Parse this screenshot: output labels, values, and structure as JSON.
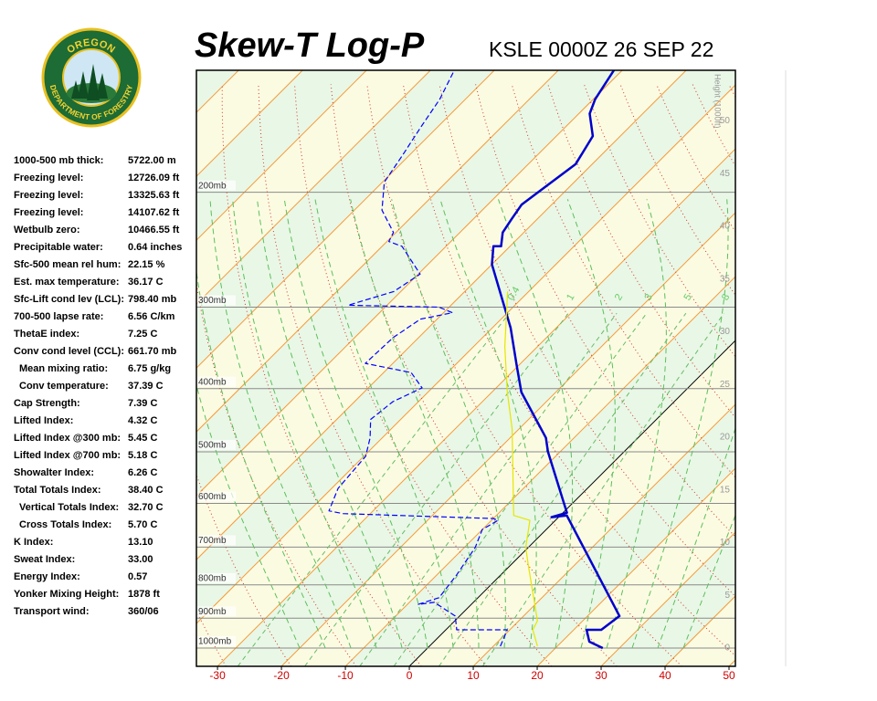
{
  "logo": {
    "top": "OREGON",
    "bottom": "DEPARTMENT OF FORESTRY"
  },
  "stats": [
    [
      "1000-500 mb thick:",
      "5722.00 m"
    ],
    [
      "Freezing level:",
      "12726.09 ft"
    ],
    [
      "Freezing level:",
      "13325.63 ft"
    ],
    [
      "Freezing level:",
      "14107.62 ft"
    ],
    [
      "Wetbulb zero:",
      "10466.55 ft"
    ],
    [
      "Precipitable water:",
      "0.64 inches"
    ],
    [
      "Sfc-500 mean rel hum:",
      "22.15 %"
    ],
    [
      "Est. max temperature:",
      "36.17 C"
    ],
    [
      "Sfc-Lift cond lev (LCL):",
      "798.40 mb"
    ],
    [
      "700-500 lapse rate:",
      "6.56 C/km"
    ],
    [
      "ThetaE index:",
      "7.25 C"
    ],
    [
      "Conv cond level (CCL):",
      "661.70 mb"
    ],
    [
      "Mean mixing ratio:",
      "6.75 g/kg"
    ],
    [
      "Conv temperature:",
      "37.39 C"
    ],
    [
      "Cap Strength:",
      "7.39 C"
    ],
    [
      "Lifted Index:",
      "4.32 C"
    ],
    [
      "Lifted Index @300 mb:",
      "5.45 C"
    ],
    [
      "Lifted Index @700 mb:",
      "5.18 C"
    ],
    [
      "Showalter Index:",
      "6.26 C"
    ],
    [
      "Total Totals Index:",
      "38.40 C"
    ],
    [
      "Vertical Totals Index:",
      "32.70 C"
    ],
    [
      "Cross Totals Index:",
      "5.70 C"
    ],
    [
      "K Index:",
      "13.10"
    ],
    [
      "Sweat Index:",
      "33.00"
    ],
    [
      "Energy Index:",
      "0.57"
    ],
    [
      "Yonker Mixing Height:",
      "1878 ft"
    ],
    [
      "Transport wind:",
      "360/06"
    ]
  ],
  "chart_data": {
    "type": "skew-t",
    "title": "Skew-T Log-P",
    "subtitle": "KSLE 0000Z 26 SEP 22",
    "xlim": [
      -33.3,
      51
    ],
    "xticks": [
      -30,
      -20,
      -10,
      0,
      10,
      20,
      30,
      40,
      50
    ],
    "ylim": [
      1066.6,
      130
    ],
    "log_y": true,
    "yticks": [
      {
        "value": 1000,
        "label": "1000mb"
      },
      {
        "value": 900,
        "label": "900mb"
      },
      {
        "value": 800,
        "label": "800mb"
      },
      {
        "value": 700,
        "label": "700mb"
      },
      {
        "value": 600,
        "label": "600mb"
      },
      {
        "value": 500,
        "label": "500mb"
      },
      {
        "value": 400,
        "label": "400mb"
      },
      {
        "value": 300,
        "label": "300mb"
      },
      {
        "value": 200,
        "label": "200mb"
      }
    ],
    "y2label": "Height (1000ft)",
    "y2lim": [
      -1.73,
      54.8
    ],
    "y2ticks": [
      0,
      5,
      10,
      15,
      20,
      25,
      30,
      35,
      40,
      45,
      50
    ],
    "mixing_ratio_lines": [
      0.4,
      1,
      2,
      3,
      5,
      8
    ],
    "series": [
      {
        "color": "#0000cc",
        "style": "solid",
        "x": [
          27.4,
          24.3,
          22.0,
          24.3,
          25.0,
          1.0,
          -1.1,
          0.6,
          -1.6,
          -11.9,
          -14.4,
          -25.4,
          -30.4,
          -37.1,
          -50.0,
          -52.6,
          -51.4,
          -53.3,
          -54.0,
          -54.7,
          -54.0,
          -52.6,
          -54.3,
          -58.3,
          -59.7,
          -61.3
        ],
        "y": [
          1000,
          977.7,
          937.5,
          937.5,
          893,
          626,
          630,
          620,
          597,
          500,
          476,
          405,
          368,
          323,
          258,
          242,
          242,
          230.5,
          220,
          209,
          199,
          181,
          164,
          151.5,
          144,
          130
        ]
      },
      {
        "color": "#0000ff",
        "style": "dashed",
        "x": [
          11.1,
          9.6,
          1.7,
          -0.7,
          -6.1,
          -8.3,
          -6.1,
          -6.9,
          -8.3,
          -10.0,
          -9.0,
          -10.0,
          -34.3,
          -36.9,
          -39.0,
          -39.7,
          -41.9,
          -44.7,
          -44.0,
          -41.6,
          -45.7,
          -54.3,
          -54.0,
          -52.6,
          -48.6,
          -51.6,
          -66.1,
          -61.1,
          -59.7,
          -66.9,
          -69.7,
          -70.4,
          -75.7,
          -79.7,
          -81.1,
          -82.6,
          -84.0,
          -86.1
        ],
        "y": [
          993.6,
          937.5,
          937.5,
          893,
          851,
          857,
          837,
          773,
          701,
          658,
          637,
          633,
          622,
          616,
          569,
          508,
          476,
          446,
          419,
          399,
          378,
          366,
          334,
          313,
          306,
          300,
          298,
          284,
          267,
          242,
          238,
          230.5,
          213,
          193,
          175,
          159,
          144,
          131
        ]
      },
      {
        "color": "#e6e600",
        "style": "thin",
        "x": [
          16.9,
          13.6,
          12.9,
          2.9,
          -0.4,
          -4.0,
          -7.3,
          -21.1,
          -27.6,
          -35.1,
          -43.3
        ],
        "y": [
          993.6,
          937.5,
          908,
          748,
          701,
          637,
          626,
          461,
          405,
          345,
          284
        ]
      }
    ]
  }
}
